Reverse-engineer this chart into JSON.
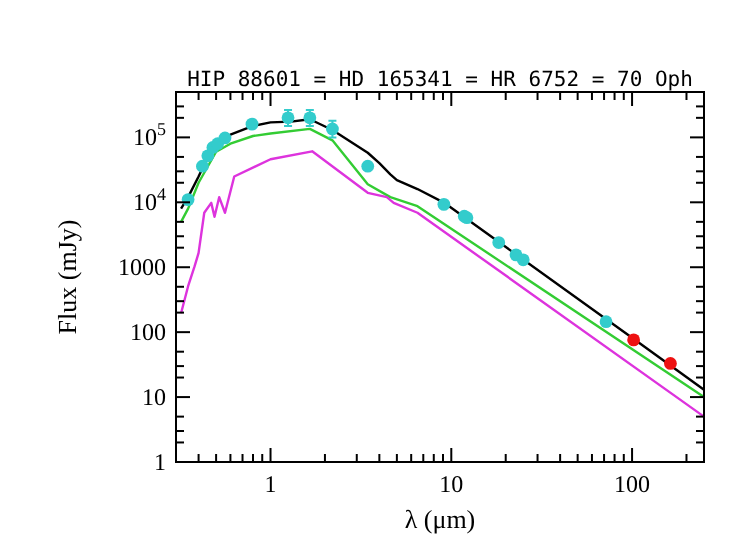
{
  "chart_data": {
    "type": "line",
    "title": "HIP 88601 = HD 165341 = HR 6752 = 70 Oph",
    "xlabel": "λ (μm)",
    "ylabel": "Flux (mJy)",
    "log": "xy",
    "grid": false,
    "line_style": "solid",
    "xlim": [
      0.3,
      250
    ],
    "ylim": [
      1,
      500000
    ],
    "xticks": [
      {
        "value": 0.3,
        "label": null
      },
      {
        "value": 0.4,
        "label": null
      },
      {
        "value": 0.5,
        "label": null
      },
      {
        "value": 0.6,
        "label": null
      },
      {
        "value": 0.7,
        "label": null
      },
      {
        "value": 0.8,
        "label": null
      },
      {
        "value": 0.9,
        "label": null
      },
      1,
      {
        "value": 2,
        "label": null
      },
      {
        "value": 3,
        "label": null
      },
      {
        "value": 4,
        "label": null
      },
      {
        "value": 5,
        "label": null
      },
      {
        "value": 6,
        "label": null
      },
      {
        "value": 7,
        "label": null
      },
      {
        "value": 8,
        "label": null
      },
      {
        "value": 9,
        "label": null
      },
      10,
      {
        "value": 20,
        "label": null
      },
      {
        "value": 30,
        "label": null
      },
      {
        "value": 40,
        "label": null
      },
      {
        "value": 50,
        "label": null
      },
      {
        "value": 60,
        "label": null
      },
      {
        "value": 70,
        "label": null
      },
      {
        "value": 80,
        "label": null
      },
      {
        "value": 90,
        "label": null
      },
      100,
      {
        "value": 200,
        "label": null
      }
    ],
    "yticks": [
      1,
      {
        "value": 2,
        "label": null
      },
      {
        "value": 3,
        "label": null
      },
      {
        "value": 5,
        "label": null
      },
      10,
      {
        "value": 20,
        "label": null
      },
      {
        "value": 30,
        "label": null
      },
      {
        "value": 50,
        "label": null
      },
      100,
      {
        "value": 200,
        "label": null
      },
      {
        "value": 300,
        "label": null
      },
      {
        "value": 500,
        "label": null
      },
      1000,
      {
        "value": 2000,
        "label": null
      },
      {
        "value": 3000,
        "label": null
      },
      {
        "value": 5000,
        "label": null
      },
      {
        "value": 10000,
        "label": "10$^{4}$"
      },
      {
        "value": 20000,
        "label": null
      },
      {
        "value": 30000,
        "label": null
      },
      {
        "value": 50000,
        "label": null
      },
      {
        "value": 100000,
        "label": "10$^{5}$"
      },
      {
        "value": 200000,
        "label": null
      },
      {
        "value": 300000,
        "label": null
      }
    ],
    "series": [
      {
        "color": "#000000",
        "x": [
          0.32,
          0.35,
          0.4,
          0.45,
          0.5,
          0.6,
          0.8,
          1.0,
          1.3,
          1.65,
          2.2,
          3.45,
          4.0,
          4.6,
          5.0,
          6.5,
          9.1,
          100,
          250
        ],
        "values": [
          8000,
          12000,
          25000,
          50000,
          80000,
          110000,
          150000,
          170000,
          175000,
          190000,
          130000,
          58000,
          40000,
          27000,
          22000,
          16000,
          9900,
          82,
          13
        ]
      },
      {
        "color": "#33cc33",
        "x": [
          0.32,
          0.35,
          0.4,
          0.5,
          0.6,
          0.8,
          1.0,
          1.65,
          2.2,
          3.45,
          4.6,
          6.5,
          250
        ],
        "values": [
          5000,
          8000,
          20000,
          60000,
          80000,
          105000,
          115000,
          135000,
          90000,
          19000,
          12000,
          8700,
          10
        ]
      },
      {
        "color": "#dd33dd",
        "x": [
          0.32,
          0.35,
          0.38,
          0.4,
          0.43,
          0.47,
          0.49,
          0.52,
          0.56,
          0.63,
          1.0,
          1.7,
          3.45,
          4.4,
          4.8,
          6.5,
          250
        ],
        "values": [
          195,
          510,
          1030,
          1660,
          6900,
          9800,
          6000,
          12000,
          6900,
          25000,
          46000,
          61000,
          14000,
          12000,
          9800,
          6900,
          5
        ]
      },
      {
        "type": "scatter",
        "color": "#33cccc",
        "marker": "circle",
        "x": [
          0.35,
          0.42,
          0.45,
          0.48,
          0.51,
          0.56,
          0.79,
          1.25,
          1.65,
          2.2,
          3.45,
          9.1,
          11.8,
          12.2,
          18.3,
          22.8,
          25,
          71.8
        ],
        "values": [
          11000,
          36000,
          52000,
          70000,
          80000,
          98000,
          160000,
          200000,
          200000,
          135000,
          36000,
          9300,
          6100,
          5800,
          2400,
          1550,
          1300,
          145
        ],
        "errors": [
          null,
          null,
          null,
          null,
          null,
          null,
          null,
          [
            150000,
            265000
          ],
          [
            150000,
            265000
          ],
          [
            100000,
            180000
          ],
          null,
          null,
          null,
          null,
          null,
          null,
          null,
          null
        ]
      },
      {
        "type": "scatter",
        "color": "#ee1111",
        "marker": "circle",
        "x": [
          102,
          163
        ],
        "values": [
          76,
          33
        ]
      }
    ]
  }
}
